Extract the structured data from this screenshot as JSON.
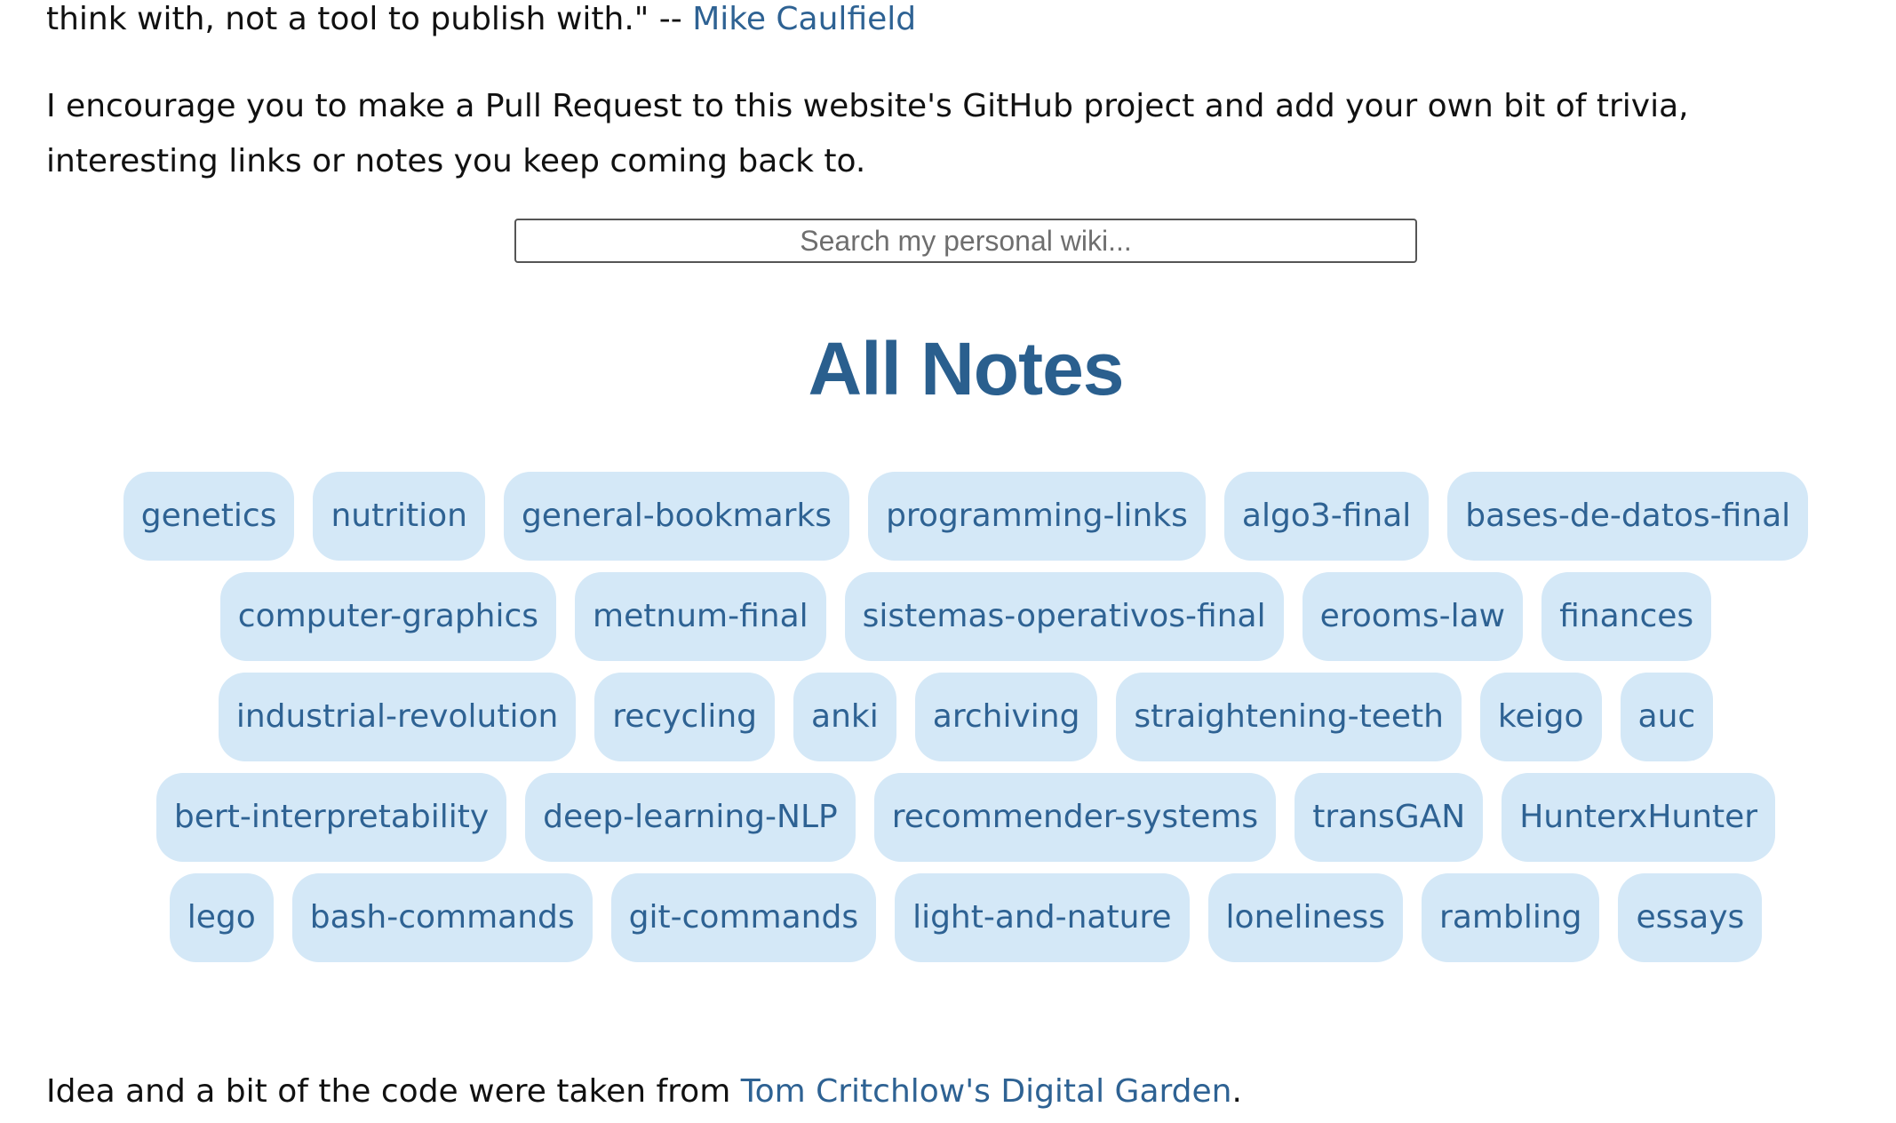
{
  "intro": {
    "quote_tail": "think with, not a tool to publish with.\" -- ",
    "quote_author": "Mike Caulfield",
    "encourage": "I encourage you to make a Pull Request to this website's GitHub project and add your own bit of trivia, interesting links or notes you keep coming back to."
  },
  "search": {
    "placeholder": "Search my personal wiki..."
  },
  "notes": {
    "title": "All Notes",
    "rows": [
      [
        "genetics",
        "nutrition",
        "general-bookmarks",
        "programming-links",
        "algo3-final",
        "bases-de-datos-final"
      ],
      [
        "computer-graphics",
        "metnum-final",
        "sistemas-operativos-final",
        "erooms-law",
        "finances"
      ],
      [
        "industrial-revolution",
        "recycling",
        "anki",
        "archiving",
        "straightening-teeth",
        "keigo",
        "auc"
      ],
      [
        "bert-interpretability",
        "deep-learning-NLP",
        "recommender-systems",
        "transGAN",
        "HunterxHunter"
      ],
      [
        "lego",
        "bash-commands",
        "git-commands",
        "light-and-nature",
        "loneliness",
        "rambling",
        "essays"
      ]
    ]
  },
  "footer": {
    "prefix": "Idea and a bit of the code were taken from ",
    "link": "Tom Critchlow's Digital Garden",
    "suffix": "."
  }
}
